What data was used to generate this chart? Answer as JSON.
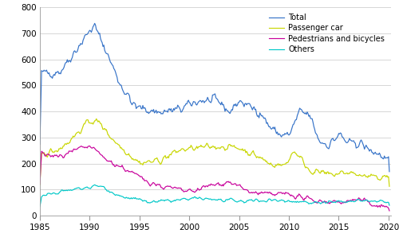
{
  "xlim": [
    1985.0,
    2020.25
  ],
  "ylim": [
    0,
    800
  ],
  "yticks": [
    0,
    100,
    200,
    300,
    400,
    500,
    600,
    700,
    800
  ],
  "xticks": [
    1985,
    1990,
    1995,
    2000,
    2005,
    2010,
    2015,
    2020
  ],
  "colors": {
    "Total": "#3673c8",
    "Passenger car": "#c8d600",
    "Pedestrians and bicycles": "#c8009b",
    "Others": "#00c8c8"
  },
  "background_color": "#ffffff",
  "grid_color": "#d0d0d0",
  "linewidth": 0.85
}
